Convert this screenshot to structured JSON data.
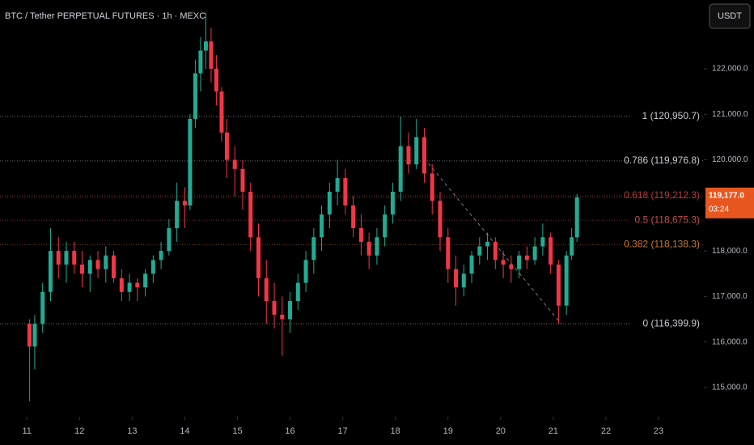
{
  "chart_data": {
    "type": "candlestick",
    "title": "BTC / Tether PERPETUAL FUTURES · 1h · MEXC",
    "currency_button": "USDT",
    "up_color": "#22ab94",
    "down_color": "#f23645",
    "x": [
      11.05,
      11.15,
      11.3,
      11.45,
      11.6,
      11.75,
      11.9,
      12.05,
      12.2,
      12.35,
      12.5,
      12.65,
      12.8,
      12.95,
      13.1,
      13.25,
      13.4,
      13.55,
      13.7,
      13.85,
      14.0,
      14.1,
      14.2,
      14.3,
      14.4,
      14.5,
      14.6,
      14.7,
      14.8,
      14.95,
      15.1,
      15.25,
      15.4,
      15.55,
      15.7,
      15.85,
      16.0,
      16.15,
      16.3,
      16.45,
      16.6,
      16.75,
      16.9,
      17.05,
      17.2,
      17.35,
      17.5,
      17.65,
      17.8,
      17.95,
      18.1,
      18.25,
      18.4,
      18.55,
      18.7,
      18.85,
      19.0,
      19.15,
      19.3,
      19.45,
      19.6,
      19.75,
      19.9,
      20.05,
      20.2,
      20.35,
      20.5,
      20.65,
      20.8,
      20.95,
      21.1,
      21.25,
      21.35,
      21.45
    ],
    "open": [
      116400,
      115900,
      116400,
      117100,
      118000,
      117700,
      118000,
      117700,
      117500,
      117800,
      117600,
      117900,
      117400,
      117100,
      117300,
      117200,
      117500,
      117800,
      118000,
      118500,
      119100,
      119000,
      120900,
      121900,
      122400,
      122600,
      122000,
      121500,
      120600,
      120000,
      119800,
      119300,
      118300,
      117400,
      116900,
      116600,
      116500,
      116900,
      117300,
      117800,
      118300,
      118800,
      119300,
      119600,
      119000,
      118500,
      118200,
      117900,
      118300,
      118800,
      119300,
      120300,
      119900,
      120500,
      119700,
      119100,
      118300,
      117600,
      117200,
      117500,
      117900,
      118100,
      118200,
      117800,
      117700,
      117600,
      117900,
      117800,
      118100,
      118300,
      117700,
      116800,
      117900,
      118300
    ],
    "high": [
      116500,
      116600,
      117300,
      118500,
      118300,
      118200,
      118200,
      118000,
      117900,
      118000,
      118100,
      118000,
      117600,
      117500,
      117400,
      117600,
      117900,
      118200,
      118700,
      119500,
      119400,
      121000,
      122200,
      122700,
      123240,
      122900,
      122300,
      121600,
      120900,
      120300,
      120000,
      119500,
      118600,
      117800,
      117300,
      117000,
      117100,
      117500,
      118000,
      118500,
      119000,
      119500,
      120000,
      119800,
      119200,
      118800,
      118400,
      118500,
      119000,
      119500,
      120950,
      120600,
      120900,
      120700,
      119900,
      119300,
      118500,
      117900,
      117700,
      118000,
      118300,
      118400,
      118300,
      118000,
      117900,
      118000,
      118100,
      118300,
      118600,
      118400,
      117800,
      118000,
      118500,
      119250
    ],
    "low": [
      114700,
      115400,
      116200,
      116900,
      117400,
      117300,
      117500,
      117200,
      117100,
      117400,
      117300,
      117300,
      116900,
      116900,
      116900,
      117000,
      117300,
      117600,
      117900,
      118200,
      118500,
      118900,
      120700,
      121500,
      122000,
      121700,
      121200,
      120400,
      119600,
      119200,
      118900,
      118000,
      117000,
      116400,
      116300,
      115700,
      116200,
      116700,
      117100,
      117500,
      118000,
      118500,
      119000,
      118800,
      118300,
      117900,
      117600,
      117700,
      118100,
      118600,
      119100,
      119700,
      119800,
      119500,
      118800,
      118000,
      117300,
      116800,
      117000,
      117300,
      117700,
      117800,
      117600,
      117400,
      117300,
      117400,
      117600,
      117700,
      117900,
      117500,
      116400,
      116600,
      117800,
      118200
    ],
    "close": [
      115900,
      116400,
      117100,
      118000,
      117700,
      118000,
      117700,
      117500,
      117800,
      117600,
      117900,
      117400,
      117100,
      117300,
      117200,
      117500,
      117800,
      118000,
      118500,
      119100,
      119000,
      120900,
      121900,
      122400,
      122600,
      122000,
      121500,
      120600,
      120000,
      119800,
      119300,
      118300,
      117400,
      116900,
      116600,
      116500,
      116900,
      117300,
      117800,
      118300,
      118800,
      119300,
      119600,
      119000,
      118500,
      118200,
      117900,
      118300,
      118800,
      119300,
      120300,
      119900,
      120500,
      119700,
      119100,
      118300,
      117600,
      117200,
      117500,
      117900,
      118100,
      118200,
      117800,
      117700,
      117600,
      117900,
      117800,
      118100,
      118300,
      117700,
      116800,
      117900,
      118300,
      119177
    ],
    "xlim": [
      10.49,
      23.86
    ],
    "xticks": [
      11,
      12,
      13,
      14,
      15,
      16,
      17,
      18,
      19,
      20,
      21,
      22,
      23
    ],
    "ylim": [
      114360,
      123510
    ],
    "yticks": [
      {
        "value": 115000,
        "label": "115,000.0"
      },
      {
        "value": 116000,
        "label": "116,000.0"
      },
      {
        "value": 117000,
        "label": "117,000.0"
      },
      {
        "value": 118000,
        "label": "118,000.0"
      },
      {
        "value": 119000,
        "label": "119,000.0"
      },
      {
        "value": 120000,
        "label": "120,000.0"
      },
      {
        "value": 121000,
        "label": "121,000.0"
      },
      {
        "value": 122000,
        "label": "122,000.0"
      }
    ],
    "fib_levels": [
      {
        "value": 120950.7,
        "label": "1 (120,950.7)",
        "color": "#c8cad0"
      },
      {
        "value": 119976.8,
        "label": "0.786 (119,976.8)",
        "color": "#c8cad0"
      },
      {
        "value": 119212.3,
        "label": "0.618 (119,212.3)",
        "color": "#b2393c"
      },
      {
        "value": 118675.3,
        "label": "0.5 (118,675.3)",
        "color": "#c0504d"
      },
      {
        "value": 118138.3,
        "label": "0.382 (118,138.3)",
        "color": "#c27a2a"
      },
      {
        "value": 116399.9,
        "label": "0 (116,399.9)",
        "color": "#c8cad0"
      }
    ],
    "trendline": {
      "x": [
        18.55,
        21.15
      ],
      "y": [
        120030,
        116400
      ]
    },
    "last_price": {
      "value": 119177.0,
      "label": "119,177.0",
      "countdown": "03:24",
      "color": "#e8561f"
    }
  }
}
